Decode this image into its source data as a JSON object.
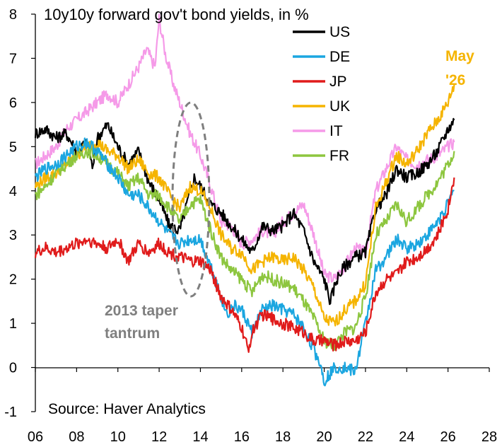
{
  "chart_data": {
    "type": "line",
    "title": "10y10y forward gov't bond yields, in %",
    "source": "Source: Haver Analytics",
    "xlabel": "",
    "ylabel": "",
    "xlim": [
      2006,
      2028
    ],
    "ylim": [
      -1,
      8
    ],
    "x_ticks": [
      "06",
      "08",
      "10",
      "12",
      "14",
      "16",
      "18",
      "20",
      "22",
      "24",
      "26",
      "28"
    ],
    "y_ticks": [
      "8",
      "7",
      "6",
      "5",
      "4",
      "3",
      "2",
      "1",
      "0",
      "-1"
    ],
    "legend_position": "top-right",
    "annotation_taper": [
      "2013 taper",
      "tantrum"
    ],
    "annotation_latest": [
      "May",
      "'26"
    ],
    "colors": {
      "US": "#000000",
      "DE": "#1BA6E0",
      "JP": "#E01B1B",
      "UK": "#F5B400",
      "IT": "#F59AE8",
      "FR": "#8DC63F",
      "annotation_gray": "#7F7F7F",
      "latest_label": "#F5B400"
    },
    "series": [
      {
        "name": "US",
        "color": "#000000",
        "x": [
          2006.0,
          2006.5,
          2007.0,
          2007.5,
          2008.0,
          2008.5,
          2008.8,
          2009.0,
          2009.5,
          2010.0,
          2010.5,
          2011.0,
          2011.5,
          2012.0,
          2012.5,
          2013.0,
          2013.4,
          2013.7,
          2014.0,
          2014.5,
          2015.0,
          2015.5,
          2016.0,
          2016.5,
          2017.0,
          2017.5,
          2018.0,
          2018.5,
          2019.0,
          2019.5,
          2020.0,
          2020.3,
          2020.6,
          2021.0,
          2021.5,
          2022.0,
          2022.5,
          2023.0,
          2023.5,
          2024.0,
          2024.5,
          2025.0,
          2025.5,
          2026.0,
          2026.3
        ],
        "y": [
          5.3,
          5.4,
          5.2,
          5.3,
          4.9,
          5.1,
          4.5,
          5.2,
          5.5,
          5.0,
          4.6,
          4.9,
          4.2,
          3.8,
          3.2,
          3.1,
          3.8,
          4.3,
          4.1,
          3.7,
          3.5,
          3.2,
          2.9,
          2.6,
          3.2,
          3.1,
          3.2,
          3.5,
          3.1,
          2.4,
          2.0,
          1.5,
          2.0,
          2.3,
          2.5,
          2.6,
          3.6,
          3.9,
          4.5,
          4.3,
          4.4,
          4.6,
          4.9,
          5.4,
          5.6
        ]
      },
      {
        "name": "DE",
        "color": "#1BA6E0",
        "x": [
          2006.0,
          2006.5,
          2007.0,
          2007.5,
          2008.0,
          2008.5,
          2009.0,
          2009.5,
          2010.0,
          2010.5,
          2011.0,
          2011.5,
          2012.0,
          2012.5,
          2013.0,
          2013.5,
          2014.0,
          2014.5,
          2015.0,
          2015.3,
          2015.6,
          2016.0,
          2016.5,
          2017.0,
          2017.5,
          2018.0,
          2018.5,
          2019.0,
          2019.3,
          2019.8,
          2020.0,
          2020.5,
          2021.0,
          2021.5,
          2022.0,
          2022.5,
          2023.0,
          2023.5,
          2024.0,
          2024.5,
          2025.0,
          2025.5,
          2026.0,
          2026.3
        ],
        "y": [
          4.3,
          4.5,
          4.6,
          4.8,
          5.0,
          5.1,
          4.9,
          4.6,
          4.3,
          3.9,
          3.9,
          3.6,
          3.3,
          3.0,
          2.8,
          2.9,
          2.9,
          2.3,
          1.6,
          1.2,
          1.4,
          1.3,
          0.8,
          1.3,
          1.4,
          1.3,
          1.2,
          0.9,
          0.6,
          0.1,
          -0.3,
          0.0,
          0.0,
          -0.1,
          1.0,
          2.2,
          2.5,
          2.9,
          2.7,
          2.8,
          3.0,
          3.3,
          3.7,
          4.0
        ]
      },
      {
        "name": "JP",
        "color": "#E01B1B",
        "x": [
          2006.0,
          2006.5,
          2007.0,
          2007.5,
          2008.0,
          2008.5,
          2009.0,
          2009.5,
          2010.0,
          2010.5,
          2011.0,
          2011.5,
          2012.0,
          2012.5,
          2013.0,
          2013.5,
          2014.0,
          2014.5,
          2015.0,
          2015.5,
          2016.0,
          2016.3,
          2016.6,
          2017.0,
          2017.5,
          2018.0,
          2018.5,
          2019.0,
          2019.5,
          2020.0,
          2020.5,
          2021.0,
          2021.5,
          2022.0,
          2022.5,
          2023.0,
          2023.5,
          2024.0,
          2024.5,
          2025.0,
          2025.5,
          2026.0,
          2026.3
        ],
        "y": [
          2.6,
          2.7,
          2.6,
          2.7,
          2.8,
          2.9,
          2.8,
          2.7,
          2.9,
          2.4,
          2.8,
          2.6,
          2.8,
          2.6,
          2.5,
          2.4,
          2.4,
          2.2,
          1.6,
          1.3,
          0.9,
          0.4,
          0.9,
          1.2,
          1.1,
          1.0,
          0.9,
          0.8,
          0.6,
          0.6,
          0.5,
          0.6,
          0.6,
          0.8,
          1.7,
          2.0,
          2.1,
          2.4,
          2.5,
          2.7,
          3.0,
          3.6,
          4.3
        ]
      },
      {
        "name": "UK",
        "color": "#F5B400",
        "x": [
          2006.0,
          2006.5,
          2007.0,
          2007.5,
          2008.0,
          2008.5,
          2009.0,
          2009.5,
          2010.0,
          2010.5,
          2011.0,
          2011.5,
          2012.0,
          2012.5,
          2013.0,
          2013.5,
          2014.0,
          2014.5,
          2015.0,
          2015.5,
          2016.0,
          2016.5,
          2017.0,
          2017.5,
          2018.0,
          2018.5,
          2019.0,
          2019.5,
          2020.0,
          2020.5,
          2021.0,
          2021.5,
          2022.0,
          2022.5,
          2023.0,
          2023.5,
          2024.0,
          2024.5,
          2025.0,
          2025.5,
          2026.0,
          2026.3
        ],
        "y": [
          4.1,
          4.3,
          4.4,
          4.6,
          4.8,
          5.0,
          5.1,
          4.9,
          4.8,
          4.5,
          4.7,
          4.4,
          4.3,
          3.9,
          3.6,
          4.1,
          4.0,
          3.6,
          3.0,
          2.7,
          2.6,
          2.2,
          2.4,
          2.5,
          2.4,
          2.5,
          2.2,
          1.8,
          1.1,
          1.0,
          1.3,
          1.5,
          1.9,
          3.6,
          4.2,
          4.8,
          4.6,
          4.9,
          5.3,
          5.6,
          6.0,
          6.4
        ]
      },
      {
        "name": "IT",
        "color": "#F59AE8",
        "x": [
          2006.0,
          2006.5,
          2007.0,
          2007.5,
          2008.0,
          2008.5,
          2009.0,
          2009.5,
          2010.0,
          2010.5,
          2011.0,
          2011.4,
          2011.8,
          2012.0,
          2012.3,
          2012.7,
          2013.0,
          2013.5,
          2014.0,
          2014.5,
          2015.0,
          2015.5,
          2016.0,
          2016.5,
          2017.0,
          2017.5,
          2018.0,
          2018.5,
          2019.0,
          2019.5,
          2020.0,
          2020.5,
          2021.0,
          2021.5,
          2022.0,
          2022.5,
          2023.0,
          2023.5,
          2024.0,
          2024.5,
          2025.0,
          2025.5,
          2026.0,
          2026.3
        ],
        "y": [
          4.6,
          4.8,
          5.0,
          5.4,
          5.6,
          5.8,
          6.0,
          6.2,
          6.0,
          6.4,
          6.8,
          7.2,
          6.8,
          7.9,
          7.1,
          6.4,
          6.0,
          5.3,
          4.8,
          4.1,
          3.3,
          3.2,
          2.8,
          2.9,
          3.1,
          3.0,
          3.3,
          3.5,
          3.7,
          3.0,
          2.1,
          2.0,
          2.3,
          2.7,
          2.6,
          4.0,
          4.5,
          5.0,
          4.7,
          4.6,
          4.7,
          4.8,
          5.0,
          5.1
        ]
      },
      {
        "name": "FR",
        "color": "#8DC63F",
        "x": [
          2006.0,
          2006.5,
          2007.0,
          2007.5,
          2008.0,
          2008.5,
          2009.0,
          2009.5,
          2010.0,
          2010.5,
          2011.0,
          2011.5,
          2012.0,
          2012.5,
          2013.0,
          2013.5,
          2014.0,
          2014.5,
          2015.0,
          2015.5,
          2016.0,
          2016.5,
          2017.0,
          2017.5,
          2018.0,
          2018.5,
          2019.0,
          2019.5,
          2020.0,
          2020.5,
          2021.0,
          2021.5,
          2022.0,
          2022.5,
          2023.0,
          2023.5,
          2024.0,
          2024.5,
          2025.0,
          2025.5,
          2026.0,
          2026.3
        ],
        "y": [
          3.9,
          4.1,
          4.4,
          4.6,
          4.8,
          4.9,
          4.8,
          4.6,
          4.4,
          4.1,
          4.3,
          3.9,
          3.9,
          3.6,
          3.3,
          3.7,
          3.8,
          3.1,
          2.5,
          2.2,
          2.0,
          1.7,
          2.1,
          2.0,
          1.9,
          1.8,
          1.5,
          1.1,
          0.6,
          0.5,
          0.8,
          0.9,
          1.6,
          3.0,
          3.3,
          3.7,
          3.3,
          3.6,
          3.9,
          4.2,
          4.6,
          4.9
        ]
      }
    ]
  }
}
